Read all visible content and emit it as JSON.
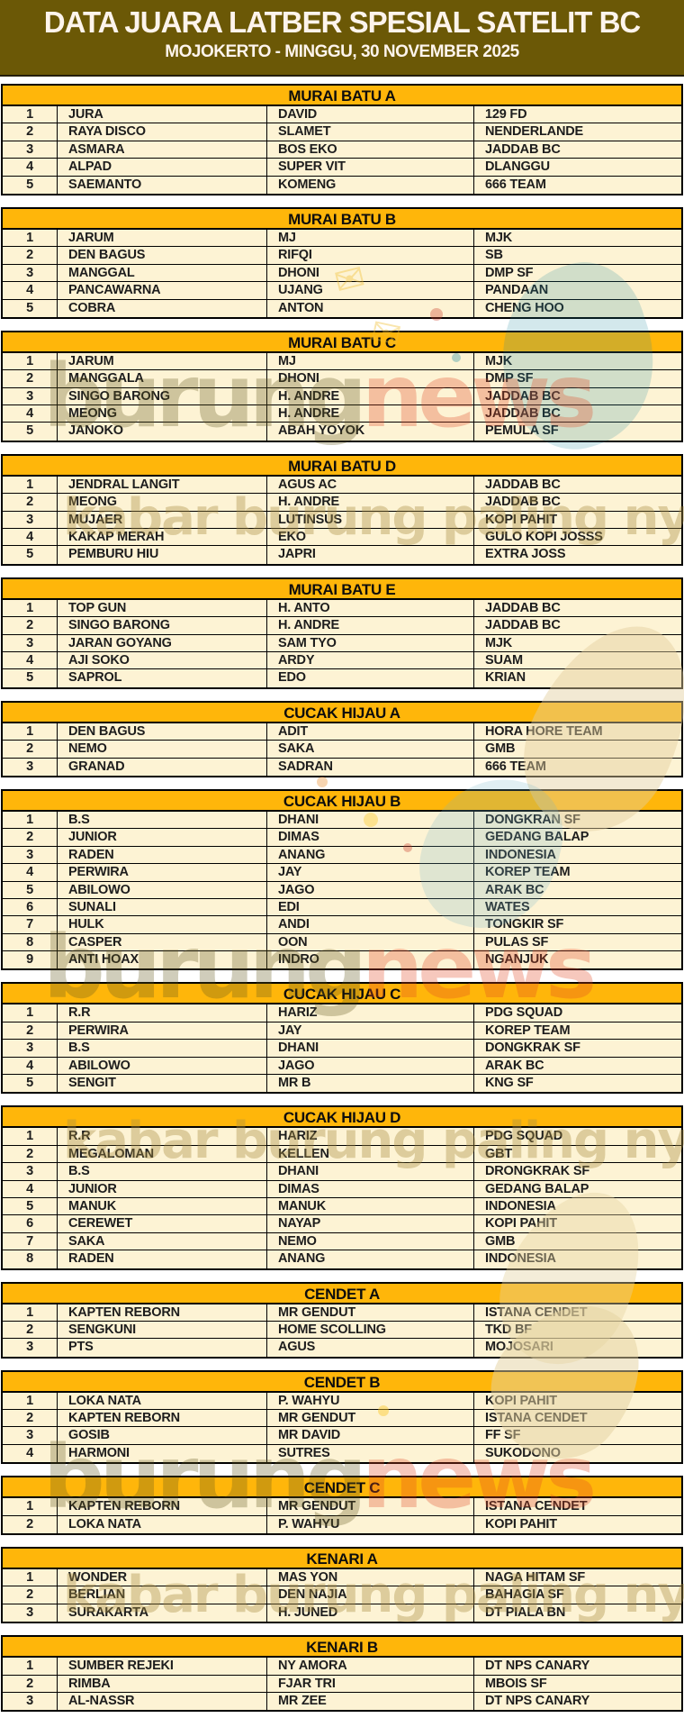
{
  "banner": {
    "title": "DATA JUARA LATBER SPESIAL SATELIT BC",
    "subtitle": "MOJOKERTO - MINGGU, 30 NOVEMBER 2025"
  },
  "colors": {
    "banner_bg": "#6b5806",
    "banner_text": "#fdf4ec",
    "section_header_bg": "#ffb60a",
    "row_bg": "#fdf3d4",
    "border": "#000000",
    "text": "#1d1d1d"
  },
  "watermark": {
    "word1": "burung",
    "word2": "news",
    "tagline": "kabar burung paling nyus",
    "envelope_icon": "✉"
  },
  "sections": [
    {
      "name": "MURAI BATU A",
      "rows": [
        {
          "no": "1",
          "bird": "JURA",
          "owner": "DAVID",
          "team": "129 FD"
        },
        {
          "no": "2",
          "bird": "RAYA DISCO",
          "owner": "SLAMET",
          "team": "NENDERLANDE"
        },
        {
          "no": "3",
          "bird": "ASMARA",
          "owner": "BOS EKO",
          "team": "JADDAB BC"
        },
        {
          "no": "4",
          "bird": "ALPAD",
          "owner": "SUPER VIT",
          "team": "DLANGGU"
        },
        {
          "no": "5",
          "bird": "SAEMANTO",
          "owner": "KOMENG",
          "team": "666 TEAM"
        }
      ]
    },
    {
      "name": "MURAI BATU B",
      "rows": [
        {
          "no": "1",
          "bird": "JARUM",
          "owner": "MJ",
          "team": "MJK"
        },
        {
          "no": "2",
          "bird": "DEN BAGUS",
          "owner": "RIFQI",
          "team": "SB"
        },
        {
          "no": "3",
          "bird": "MANGGAL",
          "owner": "DHONI",
          "team": "DMP SF"
        },
        {
          "no": "4",
          "bird": "PANCAWARNA",
          "owner": "UJANG",
          "team": "PANDAAN"
        },
        {
          "no": "5",
          "bird": "COBRA",
          "owner": "ANTON",
          "team": "CHENG HOO"
        }
      ]
    },
    {
      "name": "MURAI BATU C",
      "rows": [
        {
          "no": "1",
          "bird": "JARUM",
          "owner": "MJ",
          "team": "MJK"
        },
        {
          "no": "2",
          "bird": "MANGGALA",
          "owner": "DHONI",
          "team": "DMP SF"
        },
        {
          "no": "3",
          "bird": "SINGO BARONG",
          "owner": "H. ANDRE",
          "team": "JADDAB BC"
        },
        {
          "no": "4",
          "bird": "MEONG",
          "owner": "H. ANDRE",
          "team": "JADDAB BC"
        },
        {
          "no": "5",
          "bird": "JANOKO",
          "owner": "ABAH YOYOK",
          "team": "PEMULA SF"
        }
      ]
    },
    {
      "name": "MURAI BATU D",
      "rows": [
        {
          "no": "1",
          "bird": "JENDRAL LANGIT",
          "owner": "AGUS AC",
          "team": "JADDAB BC"
        },
        {
          "no": "2",
          "bird": "MEONG",
          "owner": "H. ANDRE",
          "team": "JADDAB BC"
        },
        {
          "no": "3",
          "bird": "MUJAER",
          "owner": "LUTINSUS",
          "team": "KOPI PAHIT"
        },
        {
          "no": "4",
          "bird": "KAKAP MERAH",
          "owner": "EKO",
          "team": "GULO KOPI JOSSS"
        },
        {
          "no": "5",
          "bird": "PEMBURU HIU",
          "owner": "JAPRI",
          "team": "EXTRA JOSS"
        }
      ]
    },
    {
      "name": "MURAI BATU E",
      "rows": [
        {
          "no": "1",
          "bird": "TOP GUN",
          "owner": "H. ANTO",
          "team": "JADDAB BC"
        },
        {
          "no": "2",
          "bird": "SINGO BARONG",
          "owner": "H. ANDRE",
          "team": "JADDAB BC"
        },
        {
          "no": "3",
          "bird": "JARAN GOYANG",
          "owner": "SAM TYO",
          "team": "MJK"
        },
        {
          "no": "4",
          "bird": "AJI SOKO",
          "owner": "ARDY",
          "team": "SUAM"
        },
        {
          "no": "5",
          "bird": "SAPROL",
          "owner": "EDO",
          "team": "KRIAN"
        }
      ]
    },
    {
      "name": "CUCAK HIJAU A",
      "rows": [
        {
          "no": "1",
          "bird": "DEN BAGUS",
          "owner": "ADIT",
          "team": "HORA HORE TEAM"
        },
        {
          "no": "2",
          "bird": "NEMO",
          "owner": "SAKA",
          "team": "GMB"
        },
        {
          "no": "3",
          "bird": "GRANAD",
          "owner": "SADRAN",
          "team": "666 TEAM"
        }
      ]
    },
    {
      "name": "CUCAK HIJAU B",
      "rows": [
        {
          "no": "1",
          "bird": "B.S",
          "owner": "DHANI",
          "team": "DONGKRAN SF"
        },
        {
          "no": "2",
          "bird": "JUNIOR",
          "owner": "DIMAS",
          "team": "GEDANG BALAP"
        },
        {
          "no": "3",
          "bird": "RADEN",
          "owner": "ANANG",
          "team": "INDONESIA"
        },
        {
          "no": "4",
          "bird": "PERWIRA",
          "owner": "JAY",
          "team": "KOREP TEAM"
        },
        {
          "no": "5",
          "bird": "ABILOWO",
          "owner": "JAGO",
          "team": "ARAK BC"
        },
        {
          "no": "6",
          "bird": "SUNALI",
          "owner": "EDI",
          "team": "WATES"
        },
        {
          "no": "7",
          "bird": "HULK",
          "owner": "ANDI",
          "team": "TONGKIR SF"
        },
        {
          "no": "8",
          "bird": "CASPER",
          "owner": "OON",
          "team": "PULAS SF"
        },
        {
          "no": "9",
          "bird": "ANTI HOAX",
          "owner": "INDRO",
          "team": "NGANJUK"
        }
      ]
    },
    {
      "name": "CUCAK HIJAU C",
      "rows": [
        {
          "no": "1",
          "bird": "R.R",
          "owner": "HARIZ",
          "team": "PDG SQUAD"
        },
        {
          "no": "2",
          "bird": "PERWIRA",
          "owner": "JAY",
          "team": "KOREP TEAM"
        },
        {
          "no": "3",
          "bird": "B.S",
          "owner": "DHANI",
          "team": "DONGKRAK SF"
        },
        {
          "no": "4",
          "bird": "ABILOWO",
          "owner": "JAGO",
          "team": "ARAK BC"
        },
        {
          "no": "5",
          "bird": "SENGIT",
          "owner": "MR B",
          "team": "KNG SF"
        }
      ]
    },
    {
      "name": "CUCAK HIJAU D",
      "rows": [
        {
          "no": "1",
          "bird": "R.R",
          "owner": "HARIZ",
          "team": "PDG SQUAD"
        },
        {
          "no": "2",
          "bird": "MEGALOMAN",
          "owner": "KELLEN",
          "team": "GBT"
        },
        {
          "no": "3",
          "bird": "B.S",
          "owner": "DHANI",
          "team": "DRONGKRAK SF"
        },
        {
          "no": "4",
          "bird": "JUNIOR",
          "owner": "DIMAS",
          "team": "GEDANG BALAP"
        },
        {
          "no": "5",
          "bird": "MANUK",
          "owner": "MANUK",
          "team": "INDONESIA"
        },
        {
          "no": "6",
          "bird": "CEREWET",
          "owner": "NAYAP",
          "team": "KOPI PAHIT"
        },
        {
          "no": "7",
          "bird": "SAKA",
          "owner": "NEMO",
          "team": "GMB"
        },
        {
          "no": "8",
          "bird": "RADEN",
          "owner": "ANANG",
          "team": "INDONESIA"
        }
      ]
    },
    {
      "name": "CENDET A",
      "rows": [
        {
          "no": "1",
          "bird": "KAPTEN REBORN",
          "owner": "MR GENDUT",
          "team": "ISTANA CENDET"
        },
        {
          "no": "2",
          "bird": "SENGKUNI",
          "owner": "HOME SCOLLING",
          "team": "TKD BF"
        },
        {
          "no": "3",
          "bird": "PTS",
          "owner": "AGUS",
          "team": "MOJOSARI"
        }
      ]
    },
    {
      "name": "CENDET B",
      "rows": [
        {
          "no": "1",
          "bird": "LOKA NATA",
          "owner": "P. WAHYU",
          "team": "KOPI PAHIT"
        },
        {
          "no": "2",
          "bird": "KAPTEN REBORN",
          "owner": "MR GENDUT",
          "team": "ISTANA CENDET"
        },
        {
          "no": "3",
          "bird": "GOSIB",
          "owner": "MR DAVID",
          "team": "FF SF"
        },
        {
          "no": "4",
          "bird": "HARMONI",
          "owner": "SUTRES",
          "team": "SUKODONO"
        }
      ]
    },
    {
      "name": "CENDET C",
      "rows": [
        {
          "no": "1",
          "bird": "KAPTEN REBORN",
          "owner": "MR GENDUT",
          "team": "ISTANA CENDET"
        },
        {
          "no": "2",
          "bird": "LOKA NATA",
          "owner": "P. WAHYU",
          "team": "KOPI PAHIT"
        }
      ]
    },
    {
      "name": "KENARI A",
      "rows": [
        {
          "no": "1",
          "bird": "WONDER",
          "owner": "MAS YON",
          "team": "NAGA HITAM SF"
        },
        {
          "no": "2",
          "bird": "BERLIAN",
          "owner": "DEN NAJIA",
          "team": "BAHAGIA SF"
        },
        {
          "no": "3",
          "bird": "SURAKARTA",
          "owner": "H. JUNED",
          "team": "DT PIALA BN"
        }
      ]
    },
    {
      "name": "KENARI B",
      "rows": [
        {
          "no": "1",
          "bird": "SUMBER REJEKI",
          "owner": "NY AMORA",
          "team": "DT NPS CANARY"
        },
        {
          "no": "2",
          "bird": "RIMBA",
          "owner": "FJAR TRI",
          "team": "MBOIS SF"
        },
        {
          "no": "3",
          "bird": "AL-NASSR",
          "owner": "MR ZEE",
          "team": "DT NPS CANARY"
        }
      ]
    }
  ]
}
